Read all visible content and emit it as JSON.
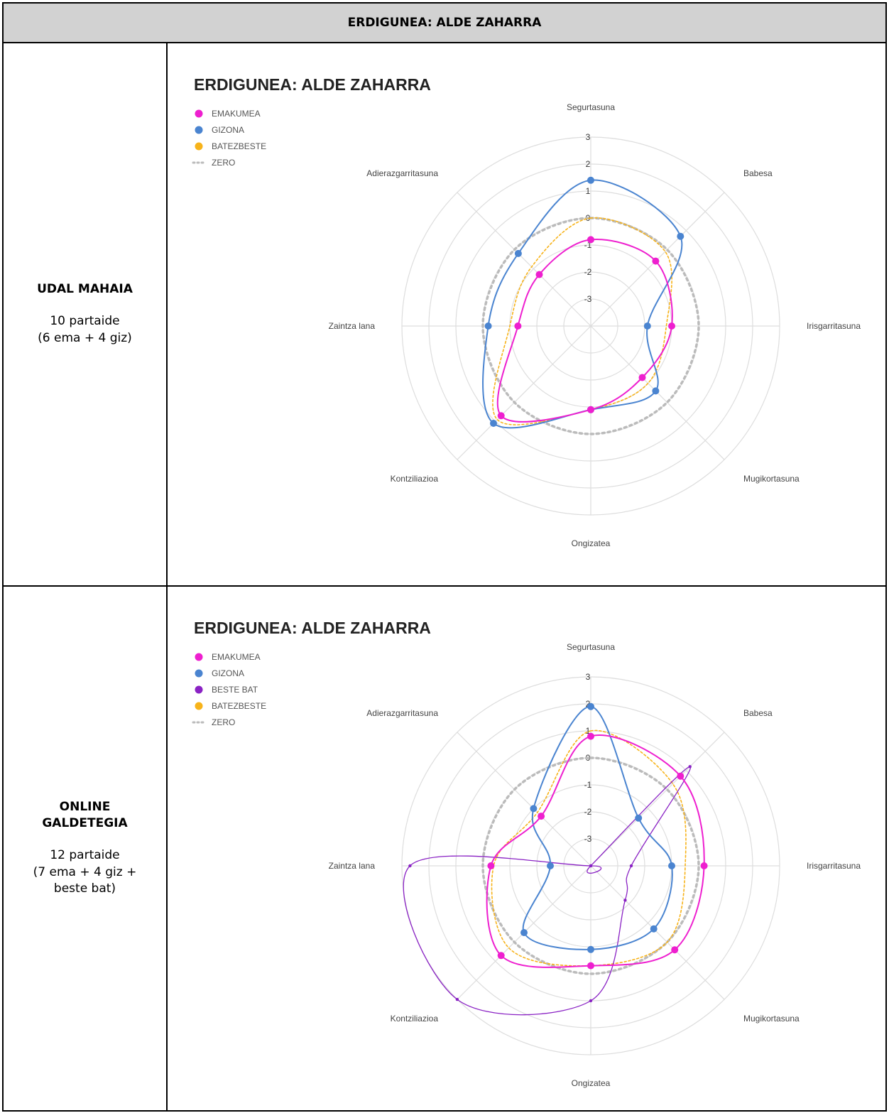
{
  "header": "ERDIGUNEA: ALDE ZAHARRA",
  "colors": {
    "EMAKUMEA": "#ee1fcf",
    "GIZONA": "#4a84d0",
    "BESTE BAT": "#8a22c4",
    "BATEZBESTE": "#f7b31a",
    "ZERO": "#bbbbbb",
    "grid": "#dddddd"
  },
  "rows": [
    {
      "title_lines": [
        "UDAL MAHAIA"
      ],
      "desc_lines": [
        "10 partaide",
        "(6 ema + 4 giz)"
      ],
      "chart_data": {
        "type": "radar",
        "title": "ERDIGUNEA: ALDE ZAHARRA",
        "axes": [
          "Segurtasuna",
          "Babesa",
          "Irisgarritasuna",
          "Mugikortasuna",
          "Ongizatea",
          "Kontziliazioa",
          "Zaintza lana",
          "Adierazgarritasuna"
        ],
        "ticks": [
          "-3",
          "-2",
          "-1",
          "0",
          "1",
          "2",
          "3"
        ],
        "range": [
          -4,
          3
        ],
        "legend": [
          "EMAKUMEA",
          "GIZONA",
          "BATEZBESTE",
          "ZERO"
        ],
        "legend_position": "top-left",
        "series": [
          {
            "name": "EMAKUMEA",
            "values": [
              -0.8,
              -0.6,
              -1.0,
              -1.3,
              -0.9,
              0.7,
              -1.3,
              -1.3
            ]
          },
          {
            "name": "GIZONA",
            "values": [
              1.4,
              0.7,
              -1.9,
              -0.6,
              -0.9,
              1.1,
              -0.2,
              -0.2
            ]
          },
          {
            "name": "BATEZBESTE",
            "values": [
              0.0,
              -0.1,
              -1.2,
              -1.0,
              -0.9,
              0.9,
              -1.0,
              -0.9
            ]
          },
          {
            "name": "ZERO",
            "values": [
              0,
              0,
              0,
              0,
              0,
              0,
              0,
              0
            ]
          }
        ]
      }
    },
    {
      "title_lines": [
        "ONLINE",
        "GALDETEGIA"
      ],
      "desc_lines": [
        "12 partaide",
        "(7 ema + 4 giz +",
        "beste bat)"
      ],
      "chart_data": {
        "type": "radar",
        "title": "ERDIGUNEA: ALDE ZAHARRA",
        "axes": [
          "Segurtasuna",
          "Babesa",
          "Irisgarritasuna",
          "Mugikortasuna",
          "Ongizatea",
          "Kontziliazioa",
          "Zaintza lana",
          "Adierazgarritasuna"
        ],
        "ticks": [
          "-3",
          "-2",
          "-1",
          "0",
          "1",
          "2",
          "3"
        ],
        "range": [
          -4,
          3
        ],
        "legend": [
          "EMAKUMEA",
          "GIZONA",
          "BESTE BAT",
          "BATEZBESTE",
          "ZERO"
        ],
        "legend_position": "top-left",
        "series": [
          {
            "name": "EMAKUMEA",
            "values": [
              0.8,
              0.7,
              0.2,
              0.4,
              -0.3,
              0.7,
              -0.3,
              -1.4
            ]
          },
          {
            "name": "GIZONA",
            "values": [
              1.9,
              -1.5,
              -1.0,
              -0.7,
              -0.9,
              -0.5,
              -2.5,
              -1.0
            ]
          },
          {
            "name": "BESTE BAT",
            "values": [
              -4.0,
              1.2,
              -2.5,
              -2.2,
              1.0,
              3.0,
              2.7,
              -4.0
            ]
          },
          {
            "name": "BATEZBESTE",
            "values": [
              1.0,
              0.3,
              -0.5,
              0.0,
              -0.3,
              0.3,
              -0.4,
              -1.2
            ]
          },
          {
            "name": "ZERO",
            "values": [
              0,
              0,
              0,
              0,
              0,
              0,
              0,
              0
            ]
          }
        ]
      }
    }
  ]
}
